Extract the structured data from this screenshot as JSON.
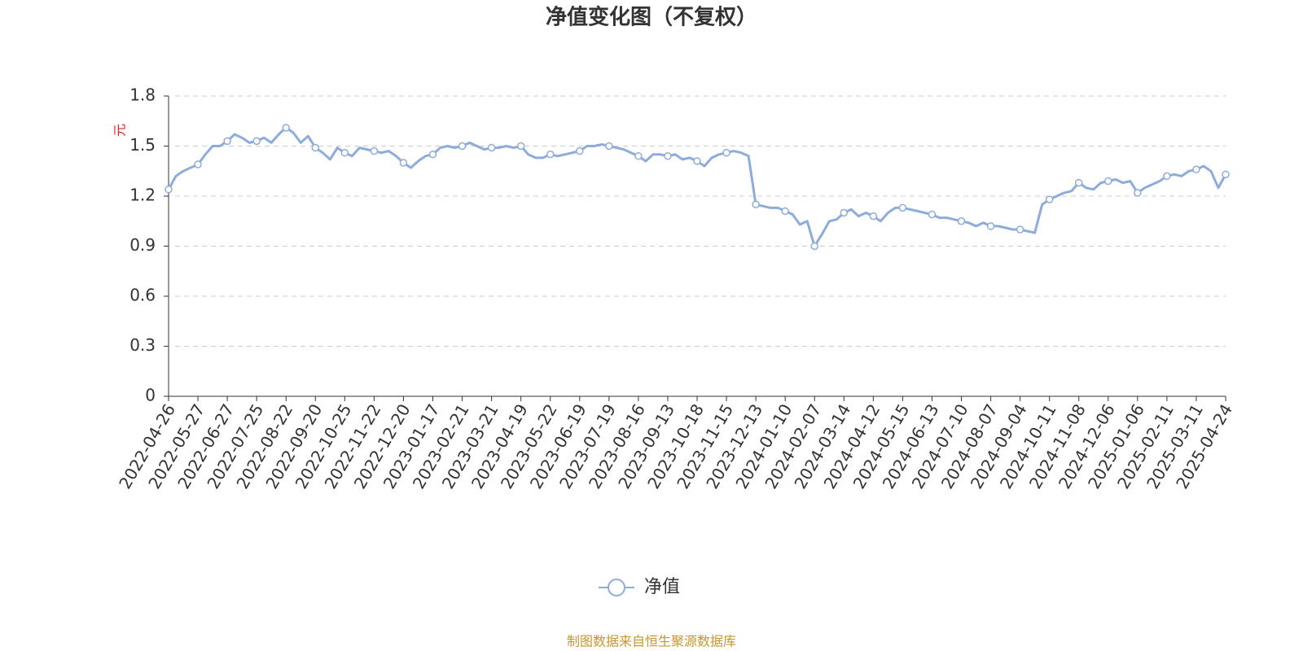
{
  "chart_data": {
    "type": "line",
    "title": "净值变化图（不复权）",
    "y_label": "元",
    "source": "制图数据来自恒生聚源数据库",
    "categories": [
      "2022-04-26",
      null,
      null,
      null,
      "2022-05-27",
      null,
      null,
      null,
      "2022-06-27",
      null,
      null,
      null,
      "2022-07-25",
      null,
      null,
      null,
      "2022-08-22",
      null,
      null,
      null,
      "2022-09-20",
      null,
      null,
      null,
      "2022-10-25",
      null,
      null,
      null,
      "2022-11-22",
      null,
      null,
      null,
      "2022-12-20",
      null,
      null,
      null,
      "2023-01-17",
      null,
      null,
      null,
      "2023-02-21",
      null,
      null,
      null,
      "2023-03-21",
      null,
      null,
      null,
      "2023-04-19",
      null,
      null,
      null,
      "2023-05-22",
      null,
      null,
      null,
      "2023-06-19",
      null,
      null,
      null,
      "2023-07-19",
      null,
      null,
      null,
      "2023-08-16",
      null,
      null,
      null,
      "2023-09-13",
      null,
      null,
      null,
      "2023-10-18",
      null,
      null,
      null,
      "2023-11-15",
      null,
      null,
      null,
      "2023-12-13",
      null,
      null,
      null,
      "2024-01-10",
      null,
      null,
      null,
      "2024-02-07",
      null,
      null,
      null,
      "2024-03-14",
      null,
      null,
      null,
      "2024-04-12",
      null,
      null,
      null,
      "2024-05-15",
      null,
      null,
      null,
      "2024-06-13",
      null,
      null,
      null,
      "2024-07-10",
      null,
      null,
      null,
      "2024-08-07",
      null,
      null,
      null,
      "2024-09-04",
      null,
      null,
      null,
      "2024-10-11",
      null,
      null,
      null,
      "2024-11-08",
      null,
      null,
      null,
      "2024-12-06",
      null,
      null,
      null,
      "2025-01-06",
      null,
      null,
      null,
      "2025-02-11",
      null,
      null,
      null,
      "2025-03-11",
      null,
      null,
      null,
      "2025-04-24"
    ],
    "series": [
      {
        "name": "净值",
        "color": "#8eacdb",
        "values": [
          1.24,
          1.32,
          1.35,
          1.37,
          1.39,
          1.45,
          1.5,
          1.5,
          1.53,
          1.57,
          1.55,
          1.52,
          1.53,
          1.55,
          1.52,
          1.57,
          1.61,
          1.58,
          1.52,
          1.56,
          1.49,
          1.46,
          1.42,
          1.49,
          1.46,
          1.44,
          1.49,
          1.48,
          1.47,
          1.46,
          1.47,
          1.44,
          1.4,
          1.37,
          1.41,
          1.44,
          1.45,
          1.49,
          1.5,
          1.49,
          1.5,
          1.52,
          1.5,
          1.48,
          1.49,
          1.49,
          1.5,
          1.49,
          1.5,
          1.45,
          1.43,
          1.43,
          1.45,
          1.44,
          1.45,
          1.46,
          1.47,
          1.5,
          1.5,
          1.51,
          1.5,
          1.49,
          1.48,
          1.46,
          1.44,
          1.41,
          1.45,
          1.45,
          1.44,
          1.45,
          1.42,
          1.43,
          1.41,
          1.38,
          1.43,
          1.45,
          1.46,
          1.47,
          1.46,
          1.44,
          1.15,
          1.14,
          1.13,
          1.13,
          1.11,
          1.09,
          1.03,
          1.05,
          0.9,
          0.97,
          1.05,
          1.06,
          1.1,
          1.12,
          1.08,
          1.1,
          1.08,
          1.05,
          1.1,
          1.13,
          1.13,
          1.12,
          1.11,
          1.1,
          1.09,
          1.07,
          1.07,
          1.06,
          1.05,
          1.04,
          1.02,
          1.04,
          1.02,
          1.02,
          1.01,
          1.0,
          1.0,
          0.99,
          0.98,
          1.15,
          1.18,
          1.2,
          1.22,
          1.23,
          1.28,
          1.25,
          1.24,
          1.28,
          1.29,
          1.3,
          1.28,
          1.29,
          1.22,
          1.25,
          1.27,
          1.29,
          1.32,
          1.33,
          1.32,
          1.35,
          1.36,
          1.38,
          1.35,
          1.25,
          1.33
        ]
      }
    ],
    "ylim": [
      0,
      1.8
    ],
    "yticks": [
      0,
      0.3,
      0.6,
      0.9,
      1.2,
      1.5,
      1.8
    ],
    "grid": true,
    "legend": "bottom"
  }
}
